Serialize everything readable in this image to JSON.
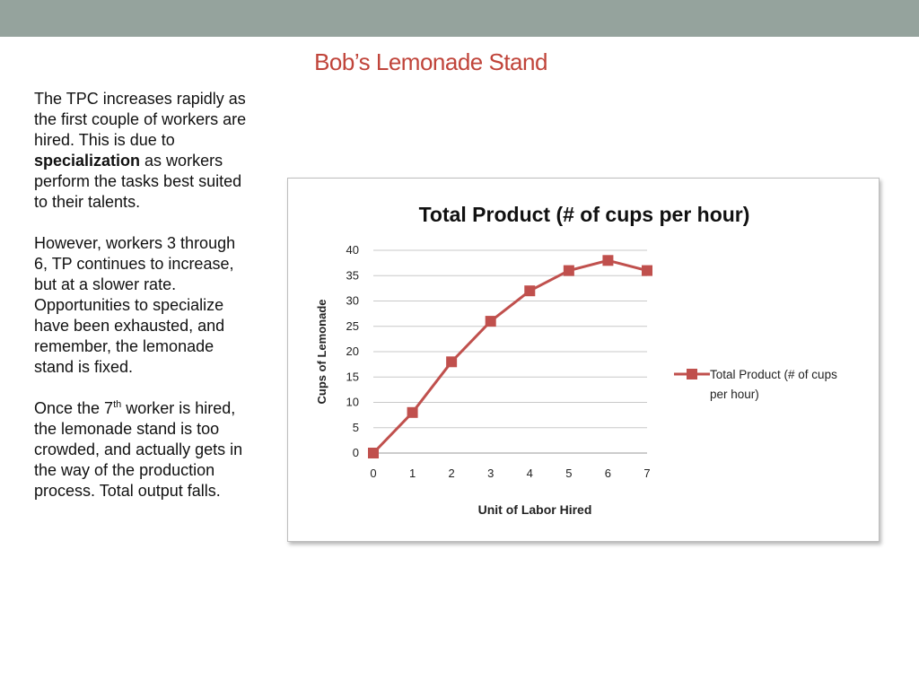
{
  "slide": {
    "title": "Bob’s Lemonade Stand",
    "paragraph1": {
      "before": "The TPC increases rapidly as the first couple of workers are hired. This is due to ",
      "bold": "specialization",
      "after": " as workers perform the tasks best suited to their talents."
    },
    "paragraph2": "However, workers 3 through 6, TP continues to increase, but at a slower rate. Opportunities to specialize have been exhausted, and remember, the lemonade stand is fixed.",
    "paragraph3": {
      "before": "Once the 7",
      "sup": "th",
      "after": " worker is hired, the lemonade stand is too crowded, and actually gets in the way of the production process.  Total output falls."
    }
  },
  "colors": {
    "top_band": "#95a39d",
    "title": "#c0443a",
    "series": "#c0504d",
    "gridline": "#c8c8c8"
  },
  "chart_data": {
    "type": "line",
    "title": "Total Product (# of cups per hour)",
    "xlabel": "Unit of Labor Hired",
    "ylabel": "Cups of Lemonade",
    "x": [
      0,
      1,
      2,
      3,
      4,
      5,
      6,
      7
    ],
    "series": [
      {
        "name": "Total Product (# of cups per hour)",
        "legend_lines": [
          "Total Product (# of cups",
          "per hour)"
        ],
        "values": [
          0,
          8,
          18,
          26,
          32,
          36,
          38,
          36
        ],
        "marker": "square"
      }
    ],
    "ylim": [
      0,
      40
    ],
    "yticks": [
      0,
      5,
      10,
      15,
      20,
      25,
      30,
      35,
      40
    ],
    "grid": true,
    "legend": "right"
  }
}
